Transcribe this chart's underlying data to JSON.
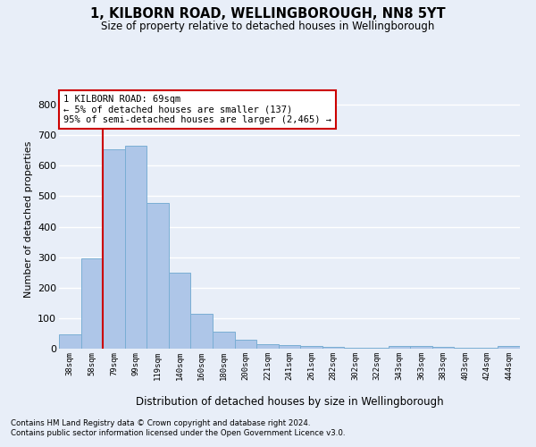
{
  "title": "1, KILBORN ROAD, WELLINGBOROUGH, NN8 5YT",
  "subtitle": "Size of property relative to detached houses in Wellingborough",
  "xlabel": "Distribution of detached houses by size in Wellingborough",
  "ylabel": "Number of detached properties",
  "categories": [
    "38sqm",
    "58sqm",
    "79sqm",
    "99sqm",
    "119sqm",
    "140sqm",
    "160sqm",
    "180sqm",
    "200sqm",
    "221sqm",
    "241sqm",
    "261sqm",
    "282sqm",
    "302sqm",
    "322sqm",
    "343sqm",
    "363sqm",
    "383sqm",
    "403sqm",
    "424sqm",
    "444sqm"
  ],
  "values": [
    48,
    295,
    653,
    665,
    478,
    250,
    113,
    55,
    30,
    15,
    12,
    10,
    7,
    4,
    4,
    10,
    8,
    5,
    3,
    2,
    8
  ],
  "bar_color": "#aec6e8",
  "bar_edge_color": "#7aaed4",
  "bg_color": "#e8eef8",
  "grid_color": "#ffffff",
  "vline_color": "#cc0000",
  "annotation_text": "1 KILBORN ROAD: 69sqm\n← 5% of detached houses are smaller (137)\n95% of semi-detached houses are larger (2,465) →",
  "annotation_box_color": "#ffffff",
  "annotation_box_edge_color": "#cc0000",
  "ylim": [
    0,
    850
  ],
  "yticks": [
    0,
    100,
    200,
    300,
    400,
    500,
    600,
    700,
    800
  ],
  "footnote1": "Contains HM Land Registry data © Crown copyright and database right 2024.",
  "footnote2": "Contains public sector information licensed under the Open Government Licence v3.0."
}
